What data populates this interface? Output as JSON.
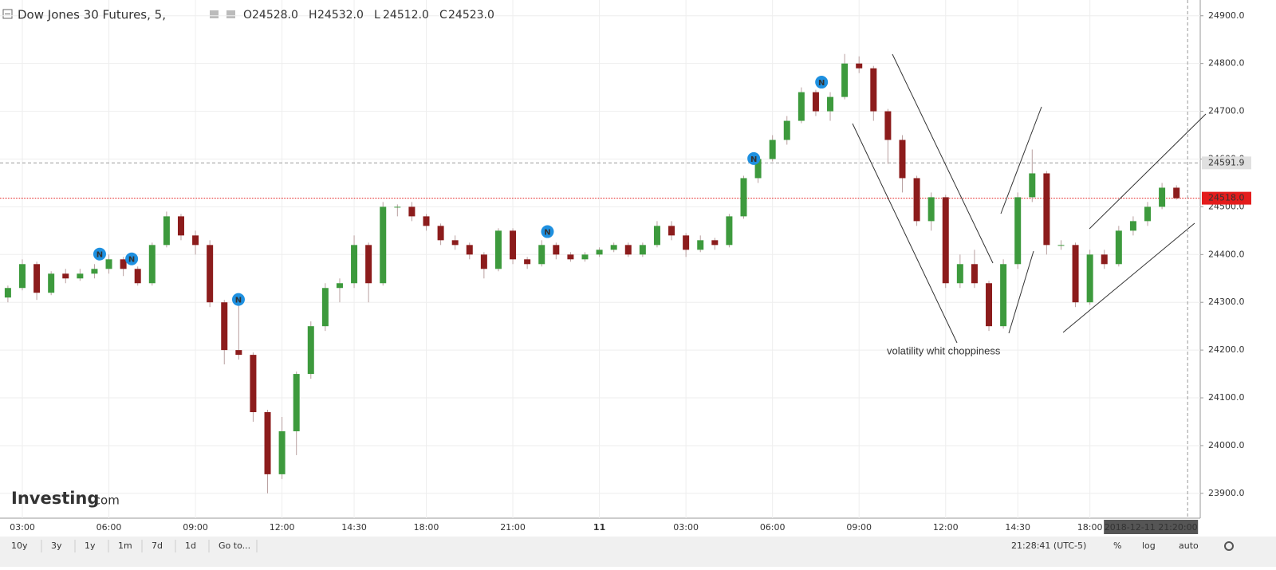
{
  "chart_data": {
    "type": "candlestick",
    "title": "Dow Jones 30 Futures, 5,",
    "ohlc_legend": [
      {
        "key": "O",
        "label": "24528.0"
      },
      {
        "key": "H",
        "label": "24532.0"
      },
      {
        "key": "L",
        "label": "24512.0"
      },
      {
        "key": "C",
        "label": "24523.0"
      }
    ],
    "categories": [
      null,
      "03:00",
      null,
      null,
      null,
      null,
      null,
      "06:00",
      null,
      null,
      null,
      null,
      null,
      "09:00",
      null,
      null,
      null,
      null,
      null,
      "12:00",
      null,
      null,
      null,
      null,
      "14:30",
      null,
      null,
      null,
      null,
      "18:00",
      null,
      null,
      null,
      null,
      null,
      "21:00",
      null,
      null,
      null,
      null,
      null,
      "11",
      null,
      null,
      null,
      null,
      null,
      "03:00",
      null,
      null,
      null,
      null,
      null,
      "06:00",
      null,
      null,
      null,
      null,
      null,
      "09:00",
      null,
      null,
      null,
      null,
      null,
      "12:00",
      null,
      null,
      null,
      null,
      "14:30",
      null,
      null,
      null,
      null,
      "18:00",
      null,
      null,
      null,
      null,
      null,
      null
    ],
    "open": [
      24310,
      24330,
      24380,
      24320,
      24360,
      24350,
      24360,
      24370,
      24390,
      24370,
      24340,
      24420,
      24480,
      24440,
      24420,
      24300,
      24200,
      24190,
      24070,
      23940,
      24030,
      24150,
      24250,
      24330,
      24340,
      24420,
      24340,
      24500,
      24500,
      24480,
      24460,
      24430,
      24420,
      24400,
      24370,
      24450,
      24390,
      24380,
      24420,
      24400,
      24390,
      24400,
      24410,
      24420,
      24400,
      24420,
      24460,
      24440,
      24410,
      24430,
      24420,
      24480,
      24560,
      24600,
      24640,
      24680,
      24740,
      24700,
      24730,
      24800,
      24790,
      24700,
      24640,
      24560,
      24470,
      24520,
      24340,
      24380,
      24340,
      24250,
      24380,
      24520,
      24570,
      24420,
      24420,
      24300,
      24400,
      24380,
      24450,
      24470,
      24500,
      24540
    ],
    "high": [
      24335,
      24390,
      24385,
      24365,
      24370,
      24370,
      24380,
      24400,
      24395,
      24375,
      24425,
      24490,
      24485,
      24450,
      24430,
      24305,
      24300,
      24195,
      24075,
      24060,
      24155,
      24260,
      24340,
      24350,
      24440,
      24425,
      24510,
      24505,
      24510,
      24485,
      24465,
      24440,
      24425,
      24405,
      24455,
      24455,
      24395,
      24430,
      24425,
      24405,
      24405,
      24415,
      24425,
      24425,
      24425,
      24470,
      24470,
      24445,
      24440,
      24435,
      24485,
      24565,
      24605,
      24650,
      24690,
      24750,
      24745,
      24740,
      24820,
      24815,
      24795,
      24705,
      24650,
      24565,
      24530,
      24525,
      24400,
      24410,
      24345,
      24390,
      24530,
      24620,
      24575,
      24430,
      24425,
      24410,
      24410,
      24460,
      24480,
      24510,
      24550,
      24545
    ],
    "low": [
      24300,
      24325,
      24305,
      24315,
      24340,
      24345,
      24350,
      24360,
      24355,
      24335,
      24335,
      24415,
      24430,
      24400,
      24290,
      24170,
      24180,
      24050,
      23900,
      23930,
      23980,
      24140,
      24240,
      24300,
      24330,
      24300,
      24335,
      24480,
      24470,
      24450,
      24420,
      24410,
      24390,
      24350,
      24365,
      24380,
      24370,
      24375,
      24390,
      24385,
      24385,
      24395,
      24405,
      24395,
      24395,
      24415,
      24430,
      24395,
      24405,
      24410,
      24415,
      24475,
      24550,
      24595,
      24630,
      24675,
      24690,
      24680,
      24725,
      24780,
      24680,
      24590,
      24530,
      24460,
      24450,
      24330,
      24330,
      24330,
      24240,
      24245,
      24370,
      24510,
      24400,
      24410,
      24290,
      24295,
      24370,
      24375,
      24440,
      24460,
      24495,
      24515
    ],
    "close": [
      24330,
      24380,
      24320,
      24360,
      24350,
      24360,
      24370,
      24390,
      24370,
      24340,
      24420,
      24480,
      24440,
      24420,
      24300,
      24200,
      24190,
      24070,
      23940,
      24030,
      24150,
      24250,
      24330,
      24340,
      24420,
      24340,
      24500,
      24500,
      24480,
      24460,
      24430,
      24420,
      24400,
      24370,
      24450,
      24390,
      24380,
      24420,
      24400,
      24390,
      24400,
      24410,
      24420,
      24400,
      24420,
      24460,
      24440,
      24410,
      24430,
      24420,
      24480,
      24560,
      24600,
      24640,
      24680,
      24740,
      24700,
      24730,
      24800,
      24790,
      24700,
      24640,
      24560,
      24470,
      24520,
      24340,
      24380,
      24340,
      24250,
      24380,
      24520,
      24570,
      24420,
      24420,
      24300,
      24400,
      24380,
      24450,
      24470,
      24500,
      24540,
      24518
    ],
    "up_color": "#3d9a3d",
    "down_color": "#8c1c1c",
    "ylim": [
      23848,
      24933
    ],
    "yticks": [
      {
        "value": 23900,
        "label": "23900.0"
      },
      {
        "value": 24000,
        "label": "24000.0"
      },
      {
        "value": 24100,
        "label": "24100.0"
      },
      {
        "value": 24200,
        "label": "24200.0"
      },
      {
        "value": 24300,
        "label": "24300.0"
      },
      {
        "value": 24400,
        "label": "24400.0"
      },
      {
        "value": 24500,
        "label": "24500.0"
      },
      {
        "value": 24600,
        "label": "24600.0"
      },
      {
        "value": 24700,
        "label": "24700.0"
      },
      {
        "value": 24800,
        "label": "24800.0"
      },
      {
        "value": 24900,
        "label": "24900.0"
      }
    ],
    "grid": true,
    "price_lines": [
      {
        "value": 24591.9,
        "color": "#999999"
      },
      {
        "value": 24518,
        "label": "24518.0",
        "color": "#e41c1c"
      }
    ],
    "news": {
      "label": "N",
      "x": [
        6.36,
        8.58,
        15.98,
        37.4,
        51.7,
        56.4
      ],
      "y": [
        24401,
        24391,
        24306,
        24448,
        24601,
        24761
      ]
    },
    "annotation": "volatility whit choppiness",
    "crosshair_time": "2018-12-11 21:20:00",
    "brand": {
      "name": "Investing",
      "suffix": ".com"
    },
    "toolbar": {
      "ranges": [
        "10y",
        "3y",
        "1y",
        "1m",
        "7d",
        "1d",
        "Go to..."
      ],
      "clock": "21:28:41 (UTC-5)",
      "options": [
        "%",
        "log",
        "auto"
      ]
    }
  }
}
